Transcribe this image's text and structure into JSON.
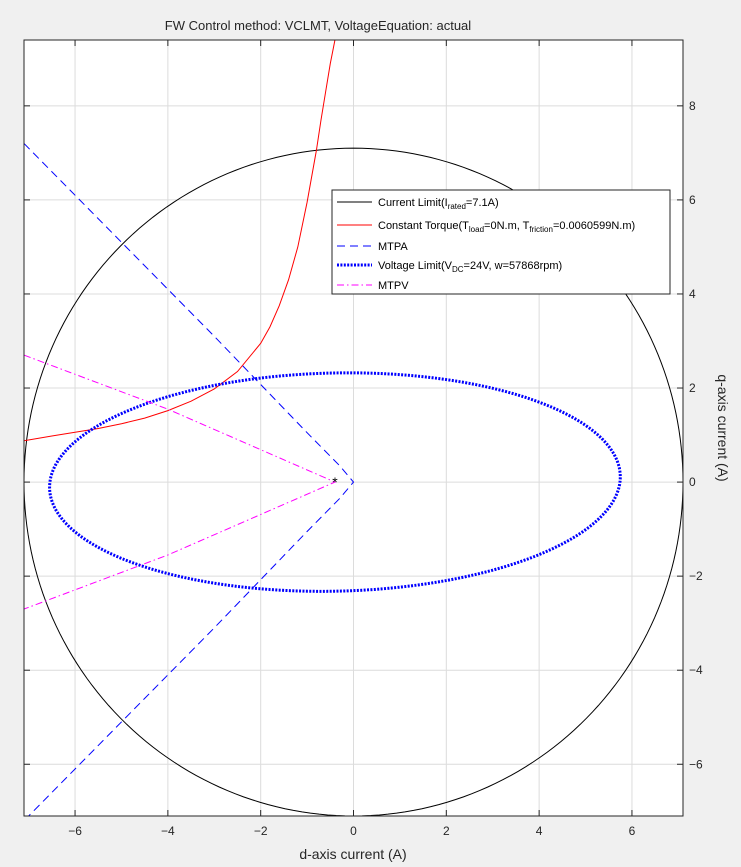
{
  "chart_data": {
    "type": "line",
    "title": "FW Control method: VCLMT, VoltageEquation: actual",
    "xlabel": "d-axis current (A)",
    "ylabel": "q-axis current (A)",
    "xlim": [
      -7.1,
      7.1
    ],
    "ylim": [
      -7.1,
      9.4
    ],
    "xticks": [
      -6,
      -4,
      -2,
      0,
      2,
      4,
      6
    ],
    "yticks": [
      -6,
      -4,
      -2,
      0,
      2,
      4,
      6,
      8
    ],
    "y_axis_location": "right",
    "grid": true,
    "legend_position": "upper-right",
    "series": [
      {
        "name": "Current Limit(I_rated=7.1A)",
        "legend": {
          "pre": "Current Limit(I",
          "sub1": "rated",
          "mid1": "=7.1A)"
        },
        "color": "#000000",
        "style": "solid",
        "kind": "circle",
        "center": [
          0,
          0
        ],
        "radius": 7.1
      },
      {
        "name": "Constant Torque(T_load=0N.m, T_friction=0.0060599N.m)",
        "legend": {
          "pre": "Constant Torque(T",
          "sub1": "load",
          "mid1": "=0N.m, T",
          "sub2": "friction",
          "mid2": "=0.0060599N.m)"
        },
        "color": "#ff0000",
        "style": "solid",
        "kind": "curve",
        "x": [
          -7.1,
          -6.5,
          -6.0,
          -5.5,
          -5.0,
          -4.5,
          -4.0,
          -3.5,
          -3.0,
          -2.5,
          -2.0,
          -1.8,
          -1.6,
          -1.4,
          -1.2,
          -1.0,
          -0.8,
          -0.7,
          -0.6,
          -0.5,
          -0.4
        ],
        "y": [
          0.88,
          0.98,
          1.06,
          1.14,
          1.24,
          1.36,
          1.52,
          1.72,
          1.98,
          2.35,
          2.95,
          3.3,
          3.75,
          4.3,
          5.0,
          5.95,
          7.05,
          7.7,
          8.3,
          8.9,
          9.4
        ]
      },
      {
        "name": "MTPA",
        "legend": {
          "pre": "MTPA"
        },
        "color": "#0000ff",
        "style": "dashed",
        "kind": "curve",
        "x": [
          -7.1,
          -5.0,
          -3.0,
          -1.0,
          -0.3,
          0.0,
          -0.3,
          -1.0,
          -3.0,
          -5.0,
          -7.1
        ],
        "y": [
          7.2,
          5.1,
          3.1,
          1.05,
          0.35,
          0.0,
          -0.35,
          -1.05,
          -3.1,
          -5.1,
          -7.2
        ]
      },
      {
        "name": "Voltage Limit(V_DC=24V, w=57868rpm)",
        "legend": {
          "pre": "Voltage Limit(V",
          "sub1": "DC",
          "mid1": "=24V, w=57868rpm)"
        },
        "color": "#0000ff",
        "style": "dotted",
        "kind": "ellipse",
        "center": [
          -0.4,
          0.0
        ],
        "semi_d": 6.15,
        "semi_q": 2.32,
        "tilt_deg": 1.2
      },
      {
        "name": "MTPV",
        "legend": {
          "pre": "MTPV"
        },
        "color": "#ff00ff",
        "style": "dashdot",
        "kind": "curve",
        "x": [
          -7.1,
          -4.0,
          -0.4,
          -4.0,
          -7.1
        ],
        "y": [
          2.7,
          1.55,
          0.0,
          -1.55,
          -2.7
        ]
      }
    ],
    "marker": {
      "x": -0.4,
      "y": 0.0,
      "symbol": "*"
    }
  }
}
